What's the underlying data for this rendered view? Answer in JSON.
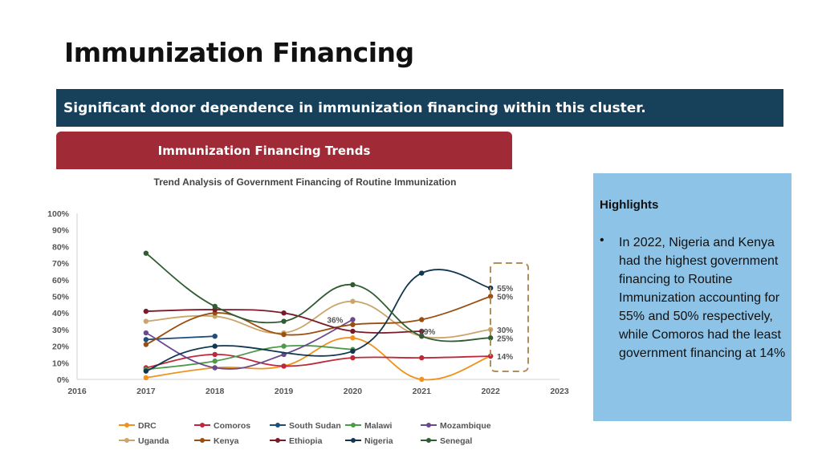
{
  "page": {
    "title": "Immunization Financing",
    "banner": "Significant donor dependence in immunization financing within this cluster.",
    "tab": "Immunization Financing Trends"
  },
  "highlights": {
    "title": "Highlights",
    "bullet": "•",
    "text": "In 2022, Nigeria and Kenya had the highest government financing to Routine Immunization accounting for 55% and 50% respectively, while Comoros had the least government financing at 14%"
  },
  "chart_data": {
    "type": "line",
    "title": "Trend Analysis of Government Financing of Routine Immunization",
    "xlabel": "",
    "ylabel": "",
    "x_ticks": [
      "2016",
      "2017",
      "2018",
      "2019",
      "2020",
      "2021",
      "2022",
      "2023"
    ],
    "y_ticks": [
      "0%",
      "10%",
      "20%",
      "30%",
      "40%",
      "50%",
      "60%",
      "70%",
      "80%",
      "90%",
      "100%"
    ],
    "xlim": [
      2016,
      2023
    ],
    "ylim": [
      0,
      100
    ],
    "legend_position": "bottom",
    "series": [
      {
        "name": "DRC",
        "color": "#f0921e",
        "points": [
          [
            2017,
            1
          ],
          [
            2018,
            7
          ],
          [
            2019,
            8
          ],
          [
            2020,
            25
          ],
          [
            2021,
            0
          ],
          [
            2022,
            14
          ]
        ]
      },
      {
        "name": "Comoros",
        "color": "#c0283a",
        "points": [
          [
            2017,
            7
          ],
          [
            2018,
            15
          ],
          [
            2019,
            8
          ],
          [
            2020,
            13
          ],
          [
            2021,
            13
          ],
          [
            2022,
            14
          ]
        ]
      },
      {
        "name": "South Sudan",
        "color": "#1f4e79",
        "points": [
          [
            2017,
            24
          ],
          [
            2018,
            26
          ]
        ]
      },
      {
        "name": "Malawi",
        "color": "#4e9a4a",
        "points": [
          [
            2017,
            6
          ],
          [
            2018,
            11
          ],
          [
            2019,
            20
          ],
          [
            2020,
            18
          ]
        ]
      },
      {
        "name": "Mozambique",
        "color": "#6a4a8c",
        "points": [
          [
            2017,
            28
          ],
          [
            2018,
            7
          ],
          [
            2019,
            15
          ],
          [
            2020,
            36
          ]
        ]
      },
      {
        "name": "Uganda",
        "color": "#caa56c",
        "points": [
          [
            2017,
            35
          ],
          [
            2018,
            38
          ],
          [
            2019,
            28
          ],
          [
            2020,
            47
          ],
          [
            2021,
            26
          ],
          [
            2022,
            30
          ]
        ]
      },
      {
        "name": "Kenya",
        "color": "#9a4f11",
        "points": [
          [
            2017,
            21
          ],
          [
            2018,
            40
          ],
          [
            2019,
            27
          ],
          [
            2020,
            33
          ],
          [
            2021,
            36
          ],
          [
            2022,
            50
          ]
        ]
      },
      {
        "name": "Ethiopia",
        "color": "#7a1a2a",
        "points": [
          [
            2017,
            41
          ],
          [
            2018,
            42
          ],
          [
            2019,
            40
          ],
          [
            2020,
            29
          ],
          [
            2021,
            29
          ]
        ]
      },
      {
        "name": "Nigeria",
        "color": "#12364f",
        "points": [
          [
            2017,
            5
          ],
          [
            2018,
            20
          ],
          [
            2020,
            17
          ],
          [
            2021,
            64
          ],
          [
            2022,
            55
          ]
        ]
      },
      {
        "name": "Senegal",
        "color": "#2f5c30",
        "points": [
          [
            2017,
            76
          ],
          [
            2018,
            44
          ],
          [
            2019,
            35
          ],
          [
            2020,
            57
          ],
          [
            2021,
            26
          ],
          [
            2022,
            25
          ]
        ]
      }
    ],
    "annotations": [
      {
        "text": "36%",
        "x": 2020,
        "y": 36
      },
      {
        "text": "29%",
        "x": 2021,
        "y": 29
      },
      {
        "text": "55%",
        "x": 2022,
        "y": 55
      },
      {
        "text": "50%",
        "x": 2022,
        "y": 50
      },
      {
        "text": "30%",
        "x": 2022,
        "y": 30
      },
      {
        "text": "25%",
        "x": 2022,
        "y": 25
      },
      {
        "text": "14%",
        "x": 2022,
        "y": 14
      }
    ]
  }
}
